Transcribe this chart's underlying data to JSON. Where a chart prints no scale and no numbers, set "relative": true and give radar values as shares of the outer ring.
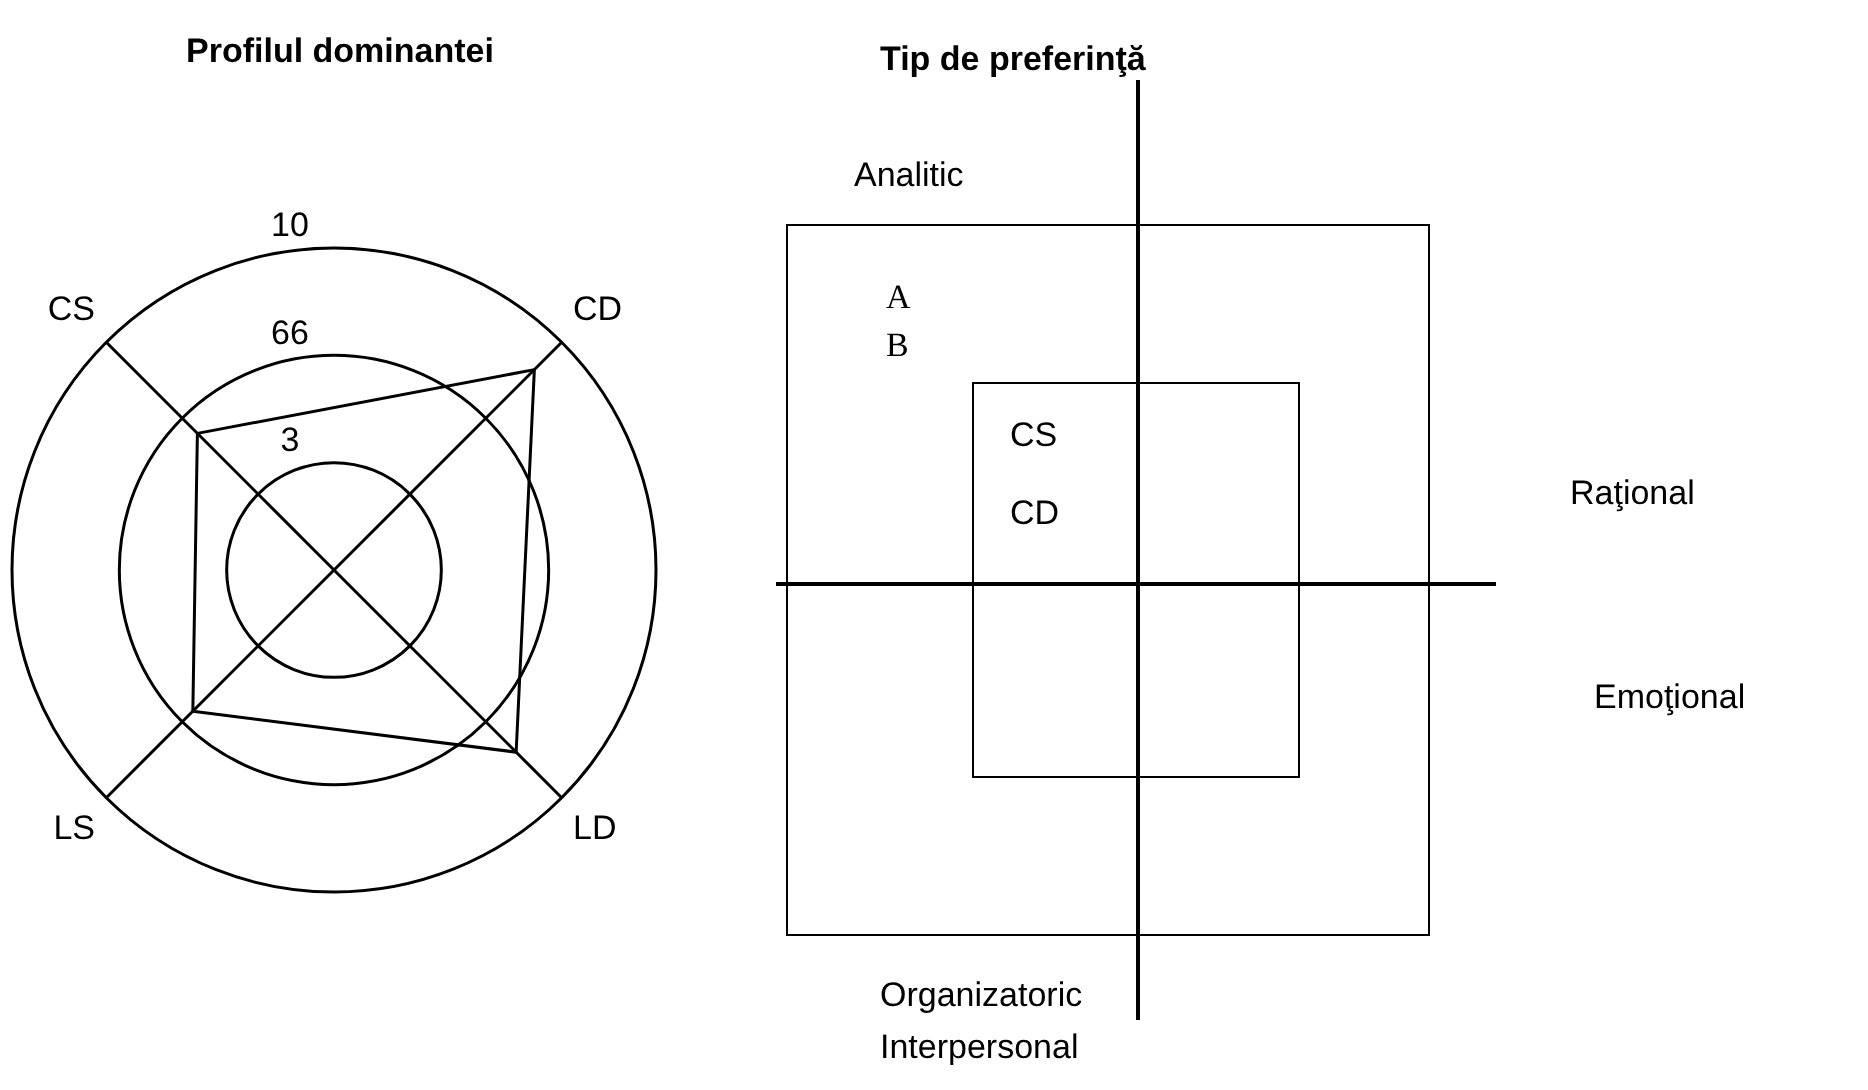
{
  "chart_data": [
    {
      "type": "radar",
      "title": "Profilul dominantei",
      "categories": [
        "CD",
        "LD",
        "LS",
        "CS"
      ],
      "series": [
        {
          "color": "#000000",
          "values": [
            0.88,
            0.8,
            0.62,
            0.6
          ]
        }
      ],
      "relative": true,
      "annotations": [
        "10",
        "66",
        "3"
      ],
      "grid": true,
      "legend": false,
      "marker": "none"
    },
    {
      "type": "other",
      "title": "Tip de preferinţă",
      "annotations": [
        "Analitic",
        "A",
        "B",
        "CS",
        "CD",
        "Raţional",
        "Emoţional",
        "Organizatoric",
        "Interpersonal"
      ]
    }
  ]
}
